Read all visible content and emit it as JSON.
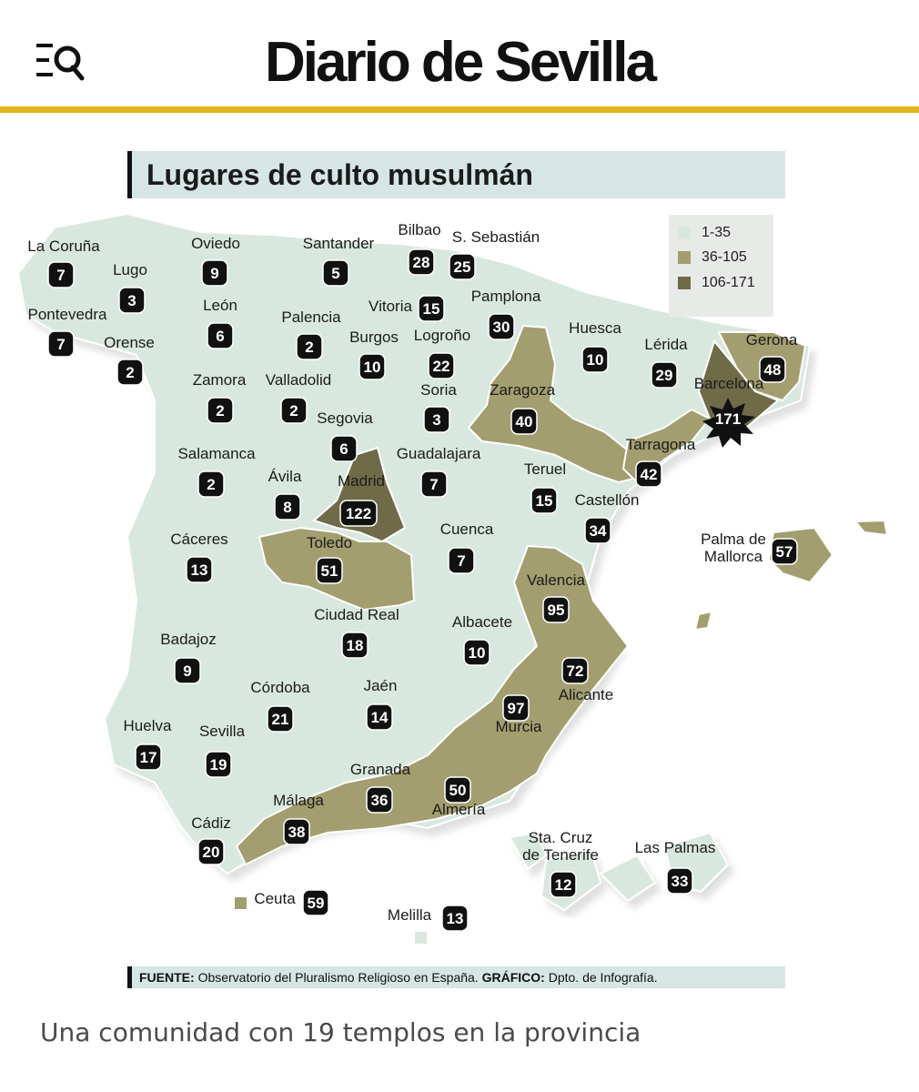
{
  "header": {
    "brand": "Diario de Sevilla",
    "menu_icon": "menu-search-icon",
    "rule_color": "#e2b41d"
  },
  "infographic": {
    "title": "Lugares de culto musulmán",
    "legend": [
      {
        "label": "1-35",
        "color": "#d9e8df"
      },
      {
        "label": "36-105",
        "color": "#a39e6f"
      },
      {
        "label": "106-171",
        "color": "#6f6a48"
      }
    ],
    "provinces": [
      {
        "name": "La Coruña",
        "value": "7"
      },
      {
        "name": "Lugo",
        "value": "3"
      },
      {
        "name": "Pontevedra",
        "value": "7"
      },
      {
        "name": "Orense",
        "value": "2"
      },
      {
        "name": "Oviedo",
        "value": "9"
      },
      {
        "name": "León",
        "value": "6"
      },
      {
        "name": "Santander",
        "value": "5"
      },
      {
        "name": "Palencia",
        "value": "2"
      },
      {
        "name": "Bilbao",
        "value": "28"
      },
      {
        "name": "S. Sebastián",
        "value": "25"
      },
      {
        "name": "Vitoria",
        "value": "15"
      },
      {
        "name": "Burgos",
        "value": "10"
      },
      {
        "name": "Logroño",
        "value": "22"
      },
      {
        "name": "Pamplona",
        "value": "30"
      },
      {
        "name": "Huesca",
        "value": "10"
      },
      {
        "name": "Lérida",
        "value": "29"
      },
      {
        "name": "Gerona",
        "value": "48"
      },
      {
        "name": "Barcelona",
        "value": "171"
      },
      {
        "name": "Zamora",
        "value": "2"
      },
      {
        "name": "Valladolid",
        "value": "2"
      },
      {
        "name": "Soria",
        "value": "3"
      },
      {
        "name": "Zaragoza",
        "value": "40"
      },
      {
        "name": "Tarragona",
        "value": "42"
      },
      {
        "name": "Segovia",
        "value": "6"
      },
      {
        "name": "Salamanca",
        "value": "2"
      },
      {
        "name": "Ávila",
        "value": "8"
      },
      {
        "name": "Madrid",
        "value": "122"
      },
      {
        "name": "Guadalajara",
        "value": "7"
      },
      {
        "name": "Teruel",
        "value": "15"
      },
      {
        "name": "Castellón",
        "value": "34"
      },
      {
        "name": "Cáceres",
        "value": "13"
      },
      {
        "name": "Toledo",
        "value": "51"
      },
      {
        "name": "Cuenca",
        "value": "7"
      },
      {
        "name": "Palma de Mallorca",
        "value": "57"
      },
      {
        "name": "Valencia",
        "value": "95"
      },
      {
        "name": "Ciudad Real",
        "value": "18"
      },
      {
        "name": "Albacete",
        "value": "10"
      },
      {
        "name": "Badajoz",
        "value": "9"
      },
      {
        "name": "Alicante",
        "value": "72"
      },
      {
        "name": "Córdoba",
        "value": "21"
      },
      {
        "name": "Jaén",
        "value": "14"
      },
      {
        "name": "Murcia",
        "value": "97"
      },
      {
        "name": "Huelva",
        "value": "17"
      },
      {
        "name": "Sevilla",
        "value": "19"
      },
      {
        "name": "Granada",
        "value": "36"
      },
      {
        "name": "Almería",
        "value": "50"
      },
      {
        "name": "Málaga",
        "value": "38"
      },
      {
        "name": "Cádiz",
        "value": "20"
      },
      {
        "name": "Sta. Cruz de Tenerife",
        "value": "12"
      },
      {
        "name": "Las Palmas",
        "value": "33"
      },
      {
        "name": "Ceuta",
        "value": "59"
      },
      {
        "name": "Melilla",
        "value": "13"
      }
    ],
    "source": {
      "source_label": "FUENTE:",
      "source_text": "Observatorio del Pluralismo Religioso en España.",
      "graphic_label": "GRÁFICO:",
      "graphic_text": "Dpto. de Infografía."
    }
  },
  "caption": "Una comunidad con 19 templos en la provincia"
}
